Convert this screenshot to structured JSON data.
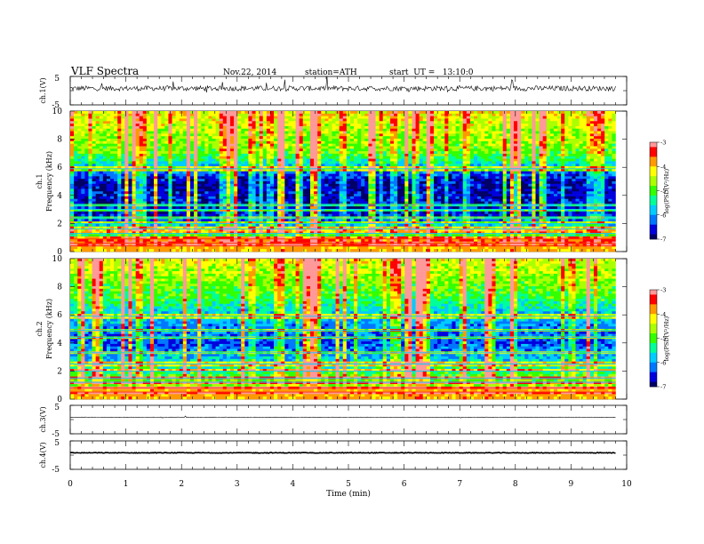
{
  "header": {
    "title": "VLF Spectra",
    "date": "Nov.22, 2014",
    "station": "station=ATH",
    "start": "start  UT =   13:10:0"
  },
  "xaxis": {
    "label": "Time (min)",
    "range": [
      0,
      10
    ],
    "ticks": [
      "0",
      "1",
      "2",
      "3",
      "4",
      "5",
      "6",
      "7",
      "8",
      "9",
      "10"
    ]
  },
  "colors": {
    "colormap": [
      "#000000",
      "#000066",
      "#0000dd",
      "#0077ff",
      "#00ccff",
      "#00ff99",
      "#33ff00",
      "#aaff00",
      "#ffff00",
      "#ff9900",
      "#ff0000",
      "#ff9999",
      "#ffffff"
    ],
    "data_end_min": 9.8
  },
  "chart_data": [
    {
      "id": "ch1-waveform",
      "type": "line",
      "ylabel": "ch.1(V)",
      "ylim": [
        -5,
        5
      ],
      "yticks": [
        "5",
        "-5"
      ],
      "baseline": 0.8,
      "noise": 0.9,
      "spike_rate": 0.03,
      "spike_amplitude": 2.8
    },
    {
      "id": "ch1-spectrogram",
      "type": "heatmap",
      "ylabel_line1": "ch.1",
      "ylabel_line2": "Frequency (kHz)",
      "ylim": [
        0,
        10
      ],
      "yticks": [
        "0",
        "2",
        "4",
        "6",
        "8",
        "10"
      ],
      "colorbar": {
        "label": "log(PSD(V²/Hz)",
        "range": [
          -7,
          -3
        ],
        "ticks": [
          "-3",
          "-4",
          "-5",
          "-6",
          "-7"
        ]
      },
      "tones_khz": [
        0.4,
        0.6,
        0.9,
        1.3,
        1.6,
        2.0,
        2.4,
        3.0,
        3.3,
        5.9
      ],
      "background_logpsd_by_freq": [
        {
          "f": 0,
          "v": -4.6
        },
        {
          "f": 1.5,
          "v": -5.4
        },
        {
          "f": 2.5,
          "v": -6.6
        },
        {
          "f": 5.0,
          "v": -6.8
        },
        {
          "f": 6.0,
          "v": -5.9
        },
        {
          "f": 7.0,
          "v": -4.9
        },
        {
          "f": 10.0,
          "v": -4.2
        }
      ]
    },
    {
      "id": "ch2-spectrogram",
      "type": "heatmap",
      "ylabel_line1": "ch.2",
      "ylabel_line2": "Frequency (kHz)",
      "ylim": [
        0,
        10
      ],
      "yticks": [
        "0",
        "2",
        "4",
        "6",
        "8",
        "10"
      ],
      "colorbar": {
        "label": "log(PSD(V²/Hz)",
        "range": [
          -7,
          -3
        ],
        "ticks": [
          "-3",
          "-4",
          "-5",
          "-6",
          "-7"
        ]
      },
      "tones_khz": [
        0.5,
        0.8,
        1.2,
        1.5,
        2.0,
        2.5,
        3.3,
        4.4,
        4.9,
        5.9
      ],
      "background_logpsd_by_freq": [
        {
          "f": 0,
          "v": -4.4
        },
        {
          "f": 1.5,
          "v": -4.9
        },
        {
          "f": 2.5,
          "v": -5.6
        },
        {
          "f": 4.0,
          "v": -6.4
        },
        {
          "f": 6.0,
          "v": -5.8
        },
        {
          "f": 7.5,
          "v": -5.0
        },
        {
          "f": 10.0,
          "v": -4.3
        }
      ]
    },
    {
      "id": "ch3-waveform",
      "type": "line",
      "ylabel": "ch.3(V)",
      "ylim": [
        -5,
        5
      ],
      "yticks": [
        "5",
        "-5"
      ],
      "baseline": 0.8,
      "noise": 0.08,
      "spike_rate": 0.005,
      "spike_amplitude": 0.4
    },
    {
      "id": "ch4-waveform",
      "type": "line",
      "ylabel": "ch.4(V)",
      "ylim": [
        -5,
        5
      ],
      "yticks": [
        "5",
        "-5"
      ],
      "baseline": 0.8,
      "noise": 0.12,
      "spike_rate": 0,
      "spike_amplitude": 0
    }
  ]
}
